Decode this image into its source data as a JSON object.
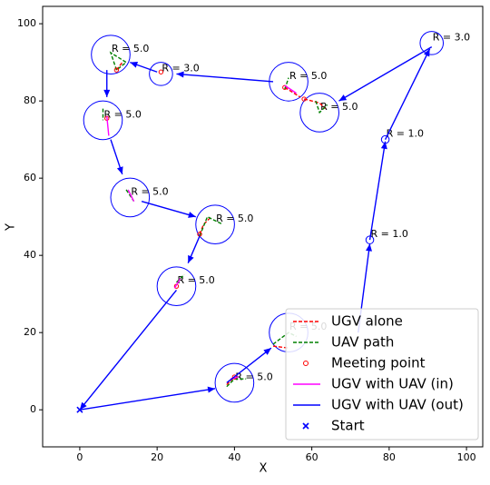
{
  "chart_data": {
    "type": "line",
    "xlabel": "X",
    "ylabel": "Y",
    "xlim": [
      -9.6,
      104.2
    ],
    "ylim": [
      -9.6,
      104.5
    ],
    "xticks": [
      0,
      20,
      40,
      60,
      80,
      100
    ],
    "yticks": [
      0,
      20,
      40,
      60,
      80,
      100
    ],
    "circles": [
      {
        "x": 8,
        "y": 92,
        "r": 5,
        "label": "R = 5.0"
      },
      {
        "x": 21,
        "y": 87,
        "r": 3,
        "label": "R = 3.0"
      },
      {
        "x": 54,
        "y": 85,
        "r": 5,
        "label": "R = 5.0"
      },
      {
        "x": 62,
        "y": 77,
        "r": 5,
        "label": "R = 5.0"
      },
      {
        "x": 91,
        "y": 95,
        "r": 3,
        "label": "R = 3.0"
      },
      {
        "x": 6,
        "y": 75,
        "r": 5,
        "label": "R = 5.0"
      },
      {
        "x": 13,
        "y": 55,
        "r": 5,
        "label": "R = 5.0"
      },
      {
        "x": 35,
        "y": 48,
        "r": 5,
        "label": "R = 5.0"
      },
      {
        "x": 25,
        "y": 32,
        "r": 5,
        "label": "R = 5.0"
      },
      {
        "x": 54,
        "y": 20,
        "r": 5,
        "label": "R = 5.0"
      },
      {
        "x": 40,
        "y": 7,
        "r": 5,
        "label": "R = 5.0"
      },
      {
        "x": 75,
        "y": 44,
        "r": 1,
        "label": "R = 1.0"
      },
      {
        "x": 79,
        "y": 70,
        "r": 1,
        "label": "R = 1.0"
      }
    ],
    "series": [
      {
        "name": "UGV alone",
        "color": "#ff0000",
        "style": "dashed",
        "x": [
          9.5,
          11,
          null,
          53,
          57,
          null,
          58,
          62,
          63.5,
          null,
          31,
          32,
          34,
          null,
          50,
          54,
          null,
          38,
          40
        ],
        "values": [
          88,
          90,
          null,
          83.5,
          81,
          null,
          80.5,
          79.5,
          78,
          null,
          45.5,
          48,
          50,
          null,
          16.5,
          16,
          null,
          6.5,
          8.5
        ]
      },
      {
        "name": "UAV path",
        "color": "#008000",
        "style": "dashed",
        "x": [
          9.5,
          8,
          12,
          9.5,
          null,
          61,
          62,
          64,
          null,
          31,
          33,
          37,
          null,
          12,
          14,
          null,
          50,
          54,
          56,
          null,
          38,
          40,
          43,
          null,
          25,
          27,
          null,
          53,
          54,
          null,
          6,
          6
        ],
        "values": [
          88,
          92.5,
          90,
          88,
          null,
          80,
          77,
          79,
          null,
          45,
          50,
          48,
          null,
          57,
          54,
          null,
          17,
          20,
          19,
          null,
          6,
          8,
          8,
          null,
          33,
          35,
          null,
          83,
          86,
          null,
          78,
          75
        ]
      },
      {
        "name": "Meeting point",
        "color": "#ff0000",
        "style": "o",
        "x": [
          9.5,
          21,
          53,
          58,
          7,
          31,
          25,
          40
        ],
        "values": [
          88,
          87.5,
          83.5,
          80.5,
          75.5,
          45.5,
          32,
          8.5
        ]
      },
      {
        "name": "UGV with UAV (in)",
        "color": "#ff00ff",
        "style": "solid",
        "x": [
          24.5,
          26,
          null,
          7,
          7.5,
          null,
          12.5,
          14,
          null,
          39,
          41,
          null,
          53,
          56
        ],
        "values": [
          31.5,
          34,
          null,
          76,
          71,
          null,
          57,
          54,
          null,
          8,
          8.5,
          null,
          84,
          82
        ]
      },
      {
        "name": "UGV with UAV (out)",
        "color": "#0000ff",
        "style": "arrow",
        "x": [
          0,
          35,
          null,
          38,
          49.5,
          null,
          72,
          75,
          null,
          75,
          79,
          null,
          79,
          90.5,
          null,
          91,
          67,
          null,
          50,
          25,
          null,
          20,
          13,
          null,
          7,
          7,
          null,
          8,
          11,
          null,
          16,
          30,
          null,
          31,
          28,
          null,
          25,
          0
        ],
        "values": [
          0,
          5.5,
          null,
          7,
          16,
          null,
          20,
          43,
          null,
          44,
          69.5,
          null,
          70,
          93.5,
          null,
          94,
          80,
          null,
          85,
          87,
          null,
          87.5,
          90,
          null,
          88,
          81,
          null,
          70,
          61,
          null,
          54,
          50,
          null,
          45,
          38,
          null,
          31,
          0
        ]
      },
      {
        "name": "Start",
        "color": "#0000ff",
        "style": "x",
        "x": [
          0
        ],
        "values": [
          0
        ]
      }
    ]
  }
}
